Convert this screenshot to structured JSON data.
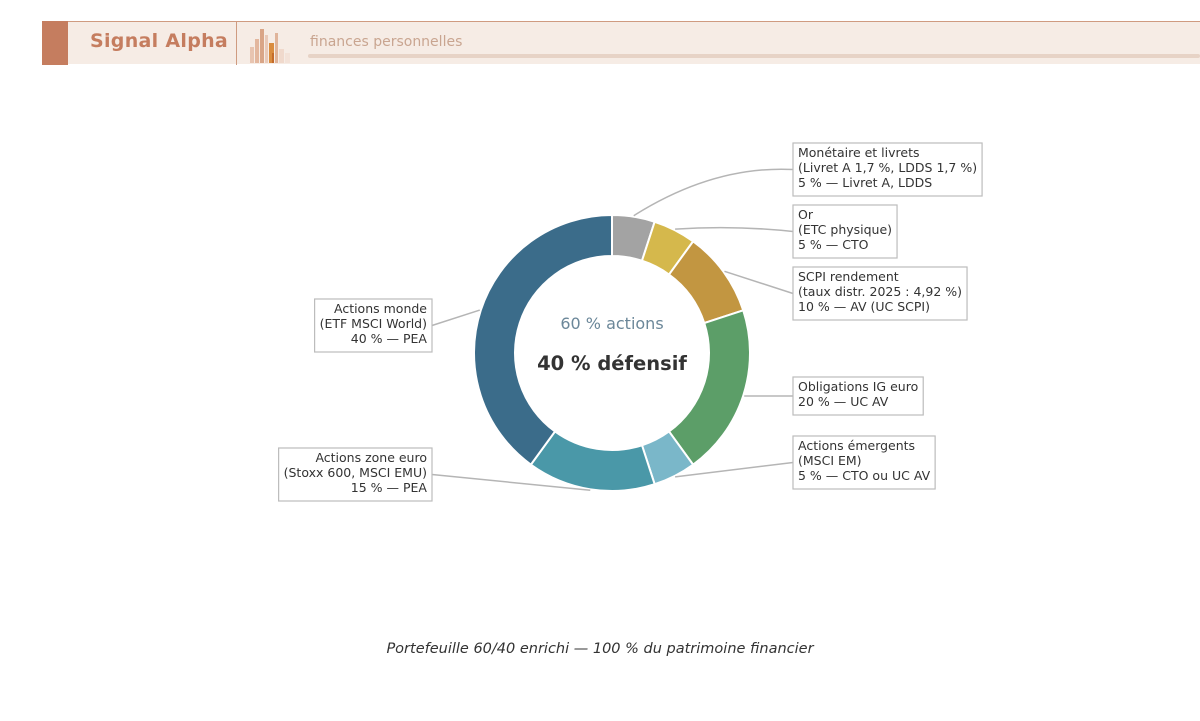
{
  "header": {
    "brand": "Signal Alpha",
    "tagline": "finances personnelles",
    "colors": {
      "accent": "#c57d5f",
      "band": "#f6ece5"
    }
  },
  "chart_data": {
    "type": "pie",
    "donut": true,
    "center_text": {
      "top": "60 % actions",
      "bottom": "40 % défensif"
    },
    "caption": "Portefeuille 60/40 enrichi — 100 % du patrimoine financier",
    "slices": [
      {
        "value": 5,
        "color": "#a3a3a3",
        "lines": [
          "Monétaire et livrets",
          "(Livret A 1,7 %, LDDS 1,7 %)",
          "5 % — Livret A, LDDS"
        ]
      },
      {
        "value": 5,
        "color": "#d5b84c",
        "lines": [
          "Or",
          "(ETC physique)",
          "5 % — CTO"
        ]
      },
      {
        "value": 10,
        "color": "#c29641",
        "lines": [
          "SCPI rendement",
          "(taux distr. 2025 : 4,92 %)",
          "10 % — AV (UC SCPI)"
        ]
      },
      {
        "value": 20,
        "color": "#5c9e68",
        "lines": [
          "Obligations IG euro",
          "20 % — UC AV"
        ]
      },
      {
        "value": 5,
        "color": "#7ab7c9",
        "lines": [
          "Actions émergents",
          "(MSCI EM)",
          "5 % — CTO ou UC AV"
        ]
      },
      {
        "value": 15,
        "color": "#4a98a8",
        "lines": [
          "Actions zone euro",
          "(Stoxx 600, MSCI EMU)",
          "15 % — PEA"
        ]
      },
      {
        "value": 40,
        "color": "#3b6c8a",
        "lines": [
          "Actions monde",
          "(ETF MSCI World)",
          "40 % — PEA"
        ]
      }
    ]
  }
}
